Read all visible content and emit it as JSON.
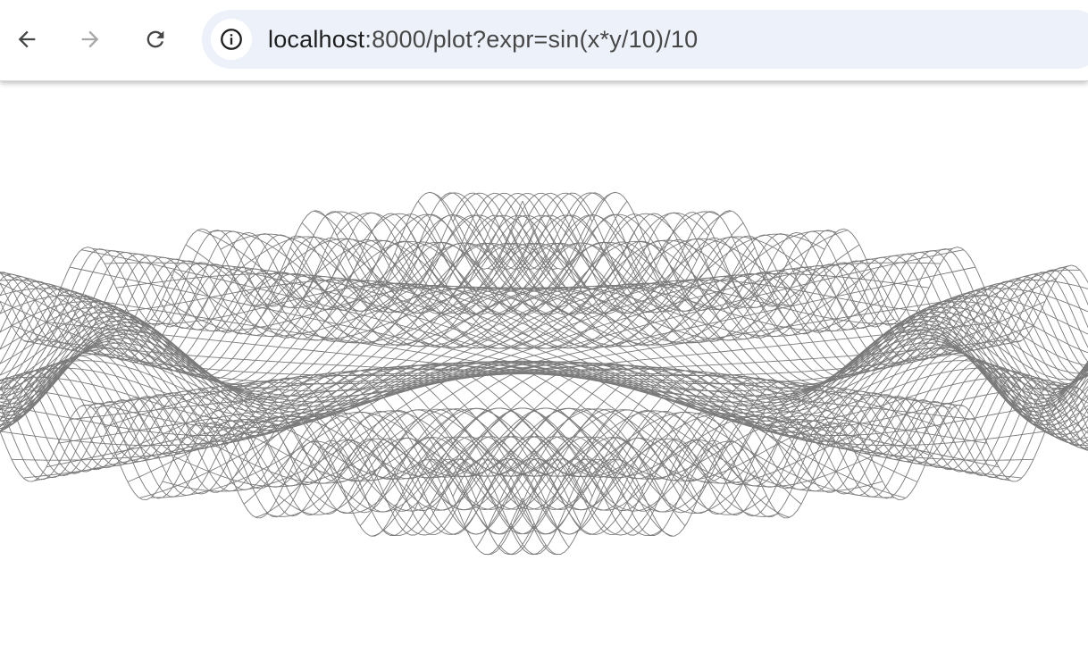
{
  "browser": {
    "back_icon": "arrow-left-icon",
    "forward_icon": "arrow-right-icon",
    "reload_icon": "reload-icon",
    "site_info_icon": "info-icon",
    "url_host": "localhost",
    "url_path": ":8000/plot?expr=sin(x*y/10)/10"
  },
  "plot": {
    "expression": "sin(x*y/10)/10",
    "type": "wireframe-surface",
    "line_color": "#7a7a7a",
    "background": "#ffffff"
  }
}
